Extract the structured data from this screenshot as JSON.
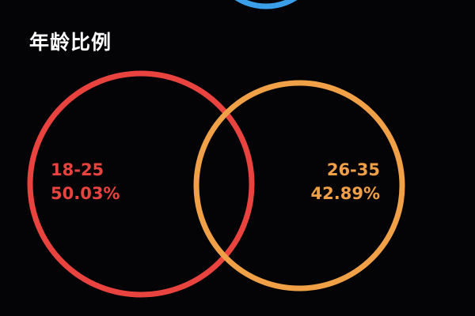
{
  "title": "年龄比例",
  "colors": {
    "background": "#040406",
    "top_arc": "#3a9ee8"
  },
  "chart_data": {
    "type": "pie",
    "title": "年龄比例",
    "categories": [
      "18-25",
      "26-35"
    ],
    "values": [
      50.03,
      42.89
    ],
    "value_labels": [
      "50.03%",
      "42.89%"
    ],
    "colors": [
      "#e8433f",
      "#f0a047"
    ]
  }
}
